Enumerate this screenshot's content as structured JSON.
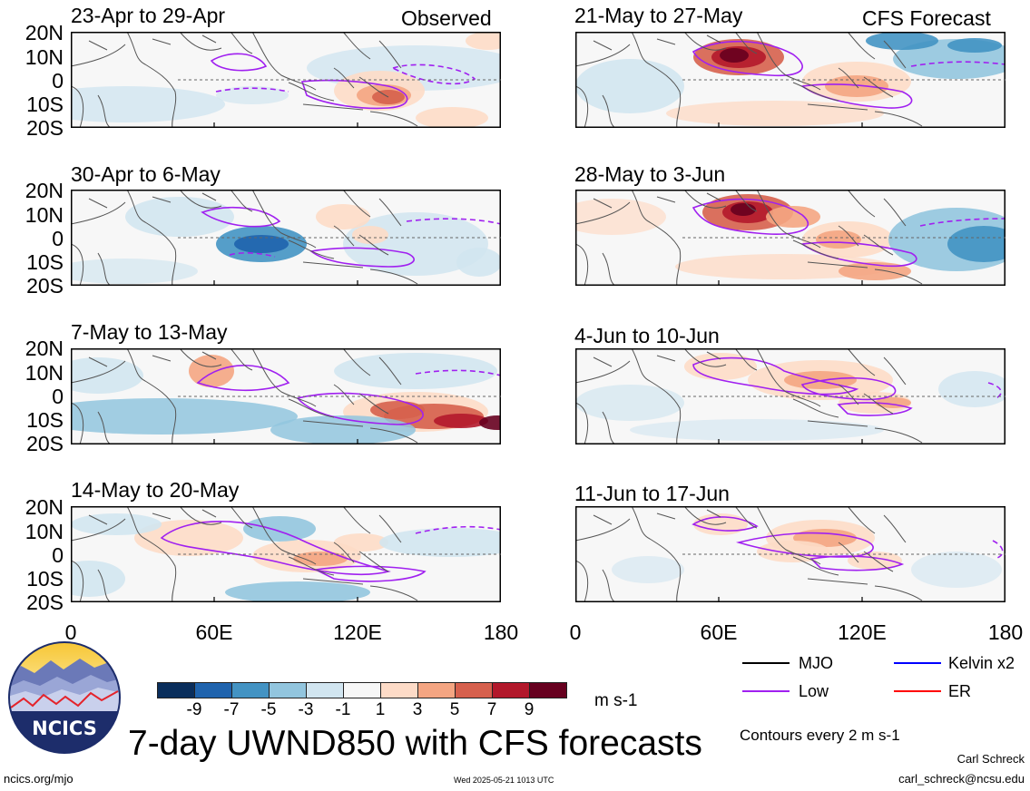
{
  "left_column_label": "Observed",
  "right_column_label": "CFS Forecast",
  "panels_left": [
    {
      "title": "23-Apr to 29-Apr"
    },
    {
      "title": "30-Apr to 6-May"
    },
    {
      "title": "7-May to 13-May"
    },
    {
      "title": "14-May to 20-May"
    }
  ],
  "panels_right": [
    {
      "title": "21-May to 27-May"
    },
    {
      "title": "28-May to 3-Jun"
    },
    {
      "title": "4-Jun to 10-Jun"
    },
    {
      "title": "11-Jun to 17-Jun"
    }
  ],
  "lat_ticks": [
    "20N",
    "10N",
    "0",
    "10S",
    "20S"
  ],
  "lon_ticks": [
    "0",
    "60E",
    "120E",
    "180"
  ],
  "colorbar": {
    "colors": [
      "#0a2e5c",
      "#1f63ad",
      "#4393c3",
      "#92c5de",
      "#d1e5f0",
      "#f7f7f7",
      "#fddbc7",
      "#f4a582",
      "#d6604d",
      "#b2182b",
      "#67001f"
    ],
    "labels": [
      "-9",
      "-7",
      "-5",
      "-3",
      "-1",
      "1",
      "3",
      "5",
      "7",
      "9"
    ],
    "units": "m s-1"
  },
  "legend": {
    "items": [
      {
        "label": "MJO",
        "color": "#000000"
      },
      {
        "label": "Kelvin x2",
        "color": "#0000ff"
      },
      {
        "label": "Low",
        "color": "#a020f0"
      },
      {
        "label": "ER",
        "color": "#ff0000"
      }
    ],
    "contour_note": "Contours every 2 m s-1"
  },
  "main_title": "7-day UWND850 with CFS forecasts",
  "logo_text": "NCICS",
  "footer": {
    "url": "ncics.org/mjo",
    "timestamp": "Wed 2025-05-21 1013 UTC",
    "author": "Carl Schreck",
    "email": "carl_schreck@ncsu.edu"
  }
}
